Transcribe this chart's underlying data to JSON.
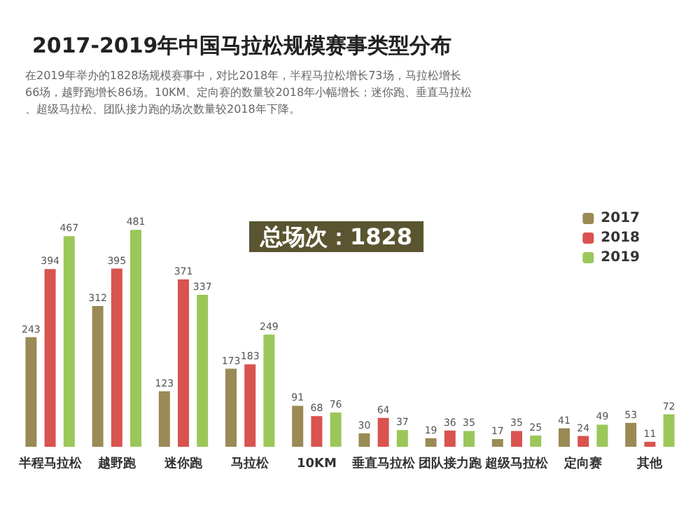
{
  "chart_data": {
    "type": "bar",
    "title": "2017-2019年中国马拉松规模赛事类型分布",
    "subtitle": "在2019年举办的1828场规模赛事中，对比2018年，半程马拉松增长73场，马拉松增长66场，越野跑增长86场。10KM、定向赛的数量较2018年小幅增长；迷你跑、垂直马拉松、超级马拉松、团队接力跑的场次数量较2018年下降。",
    "annotations": [
      "总场次：1828"
    ],
    "categories": [
      "半程马拉松",
      "越野跑",
      "迷你跑",
      "马拉松",
      "10KM",
      "垂直马拉松",
      "团队接力跑",
      "超级马拉松",
      "定向赛",
      "其他"
    ],
    "series": [
      {
        "name": "2017",
        "color": "#9a8a55",
        "values": [
          243,
          312,
          123,
          173,
          91,
          30,
          19,
          17,
          41,
          53
        ]
      },
      {
        "name": "2018",
        "color": "#d9534f",
        "values": [
          394,
          395,
          371,
          183,
          68,
          64,
          36,
          35,
          24,
          11
        ]
      },
      {
        "name": "2019",
        "color": "#9bc75a",
        "values": [
          467,
          481,
          337,
          249,
          76,
          37,
          35,
          25,
          49,
          72
        ]
      }
    ],
    "data_labels": true,
    "legend": "top right",
    "tick_labels": "x"
  }
}
